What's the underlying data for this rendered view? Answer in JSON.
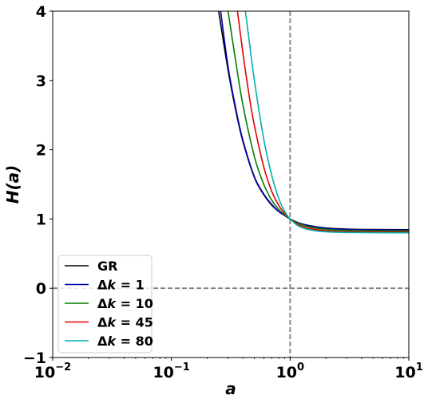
{
  "chart_data": {
    "type": "line",
    "xlabel": "a",
    "ylabel": "H(a)",
    "xscale": "log",
    "xlim": [
      0.01,
      10
    ],
    "ylim": [
      -1,
      4
    ],
    "x_ticks": [
      {
        "value": 0.01,
        "base": "10",
        "exp": "−2"
      },
      {
        "value": 0.1,
        "base": "10",
        "exp": "−1"
      },
      {
        "value": 1,
        "base": "10",
        "exp": "0"
      },
      {
        "value": 10,
        "base": "10",
        "exp": "1"
      }
    ],
    "y_ticks": [
      {
        "value": -1,
        "label": "−1"
      },
      {
        "value": 0,
        "label": "0"
      },
      {
        "value": 1,
        "label": "1"
      },
      {
        "value": 2,
        "label": "2"
      },
      {
        "value": 3,
        "label": "3"
      },
      {
        "value": 4,
        "label": "4"
      }
    ],
    "reference_lines": {
      "horizontal": 0,
      "vertical": 1,
      "color": "#808080",
      "style": "dashed"
    },
    "legend_position": "lower-left",
    "grid": false,
    "series": [
      {
        "name": "GR",
        "legend_parts": {
          "lhs": "GR"
        },
        "color": "#000000",
        "x": [
          0.25,
          0.3,
          0.35,
          0.4,
          0.5,
          0.6,
          0.7,
          0.8,
          0.9,
          1.0,
          1.2,
          1.5,
          2,
          3,
          5,
          10
        ],
        "y": [
          4.0,
          3.15,
          2.55,
          2.12,
          1.6,
          1.35,
          1.2,
          1.11,
          1.05,
          1.0,
          0.94,
          0.9,
          0.87,
          0.855,
          0.848,
          0.845
        ]
      },
      {
        "name": "Δk = 1",
        "legend_parts": {
          "lhs": "Δ",
          "var": "k",
          "rhs": " = 1"
        },
        "color": "#0000b4",
        "x": [
          0.26,
          0.3,
          0.35,
          0.4,
          0.5,
          0.6,
          0.7,
          0.8,
          0.9,
          1.0,
          1.2,
          1.5,
          2,
          3,
          5,
          10
        ],
        "y": [
          4.0,
          3.2,
          2.58,
          2.14,
          1.61,
          1.36,
          1.21,
          1.11,
          1.05,
          1.0,
          0.94,
          0.895,
          0.865,
          0.85,
          0.843,
          0.84
        ]
      },
      {
        "name": "Δk = 10",
        "legend_parts": {
          "lhs": "Δ",
          "var": "k",
          "rhs": " = 10"
        },
        "color": "#008000",
        "x": [
          0.3,
          0.35,
          0.4,
          0.5,
          0.6,
          0.7,
          0.8,
          0.9,
          1.0,
          1.2,
          1.5,
          2,
          3,
          5,
          10
        ],
        "y": [
          4.0,
          3.25,
          2.65,
          1.9,
          1.5,
          1.27,
          1.14,
          1.06,
          1.0,
          0.93,
          0.88,
          0.85,
          0.835,
          0.83,
          0.828
        ]
      },
      {
        "name": "Δk = 45",
        "legend_parts": {
          "lhs": "Δ",
          "var": "k",
          "rhs": " = 45"
        },
        "color": "#e00000",
        "x": [
          0.36,
          0.4,
          0.45,
          0.5,
          0.6,
          0.7,
          0.8,
          0.9,
          1.0,
          1.2,
          1.5,
          2,
          3,
          5,
          10
        ],
        "y": [
          4.0,
          3.4,
          2.8,
          2.35,
          1.75,
          1.4,
          1.2,
          1.08,
          1.0,
          0.91,
          0.86,
          0.83,
          0.818,
          0.815,
          0.813
        ]
      },
      {
        "name": "Δk = 80",
        "legend_parts": {
          "lhs": "Δ",
          "var": "k",
          "rhs": " = 80"
        },
        "color": "#00b0b0",
        "x": [
          0.42,
          0.45,
          0.5,
          0.6,
          0.7,
          0.8,
          0.9,
          1.0,
          1.2,
          1.5,
          2,
          3,
          5,
          10
        ],
        "y": [
          4.0,
          3.6,
          3.0,
          2.15,
          1.63,
          1.3,
          1.11,
          1.0,
          0.89,
          0.84,
          0.815,
          0.805,
          0.802,
          0.8
        ]
      }
    ]
  }
}
